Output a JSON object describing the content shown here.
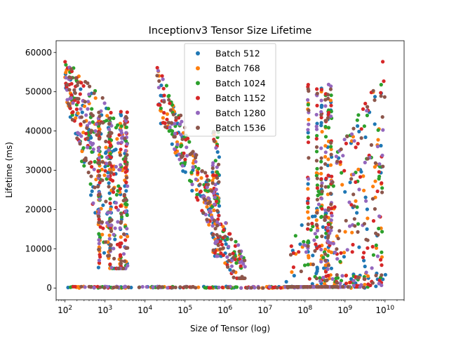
{
  "chart_data": {
    "type": "scatter",
    "title": "Inceptionv3 Tensor Size Lifetime",
    "xlabel": "Size of Tensor (log)",
    "ylabel": "Lifetime (ms)",
    "xscale": "log",
    "xlim": [
      60,
      30000000000
    ],
    "ylim": [
      -3000,
      63000
    ],
    "x_ticks": [
      {
        "value": 100,
        "base": "10",
        "exp": "2"
      },
      {
        "value": 1000,
        "base": "10",
        "exp": "3"
      },
      {
        "value": 10000,
        "base": "10",
        "exp": "4"
      },
      {
        "value": 100000,
        "base": "10",
        "exp": "5"
      },
      {
        "value": 1000000,
        "base": "10",
        "exp": "6"
      },
      {
        "value": 10000000,
        "base": "10",
        "exp": "7"
      },
      {
        "value": 100000000,
        "base": "10",
        "exp": "8"
      },
      {
        "value": 1000000000,
        "base": "10",
        "exp": "9"
      },
      {
        "value": 10000000000,
        "base": "10",
        "exp": "10"
      }
    ],
    "y_ticks": [
      "0",
      "10000",
      "20000",
      "30000",
      "40000",
      "50000",
      "60000"
    ],
    "legend_position": "upper-center",
    "grid": false,
    "series": [
      {
        "name": "Batch 512",
        "color": "#1f77b4",
        "peak": 58000
      },
      {
        "name": "Batch 768",
        "color": "#ff7f0e",
        "peak": 58500
      },
      {
        "name": "Batch 1024",
        "color": "#2ca02c",
        "peak": 59000
      },
      {
        "name": "Batch 1152",
        "color": "#d62728",
        "peak": 59000
      },
      {
        "name": "Batch 1280",
        "color": "#9467bd",
        "peak": 59200
      },
      {
        "name": "Batch 1536",
        "color": "#8c564b",
        "peak": 59500
      }
    ],
    "clusters": [
      {
        "x_min": 100,
        "x_max": 3500,
        "y_top": 58000,
        "y_bottom": 5000
      },
      {
        "x_min": 20000,
        "x_max": 3000000,
        "y_top": 57000,
        "y_bottom": 3000
      },
      {
        "x_min": 30000000,
        "x_max": 10000000000,
        "y_top": 59000,
        "y_bottom": 0
      }
    ]
  }
}
